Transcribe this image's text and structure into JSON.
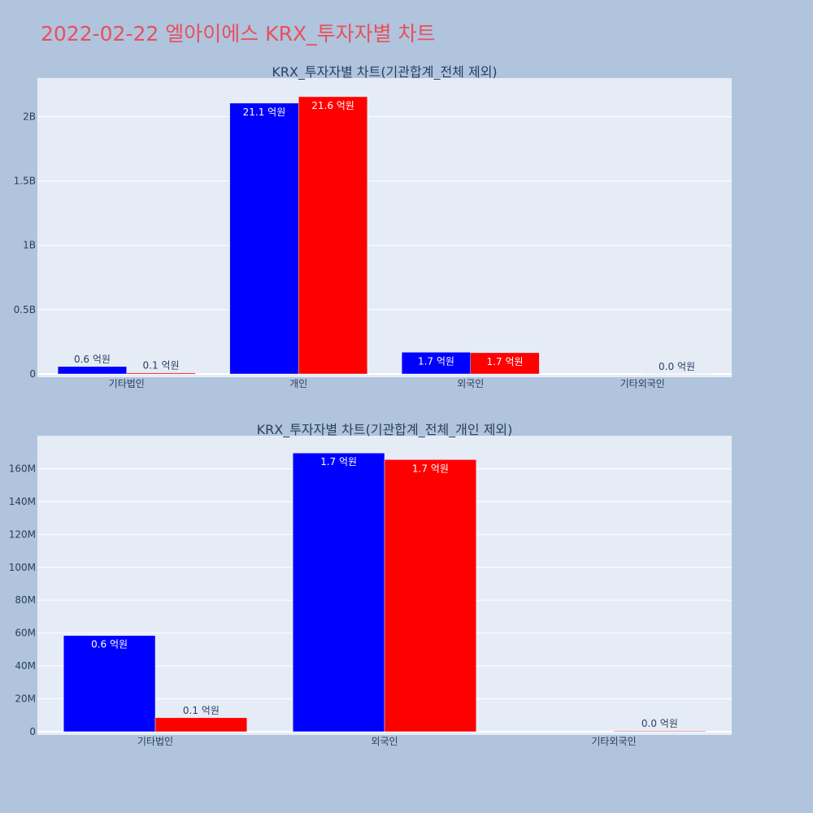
{
  "page": {
    "title": "2022-02-22 엘아이에스 KRX_투자자별 차트"
  },
  "colors": {
    "buy": "#0000ff",
    "sell": "#ff0000",
    "plot_bg": "#e5ecf6",
    "page_bg": "#b0c4de",
    "title": "#e8505b"
  },
  "chart_data": [
    {
      "type": "bar",
      "title": "KRX_투자자별 차트(기관합계_전체 제외)",
      "categories": [
        "기타법인",
        "개인",
        "외국인",
        "기타외국인"
      ],
      "series": [
        {
          "values": [
            58000000,
            2105000000,
            169000000,
            0
          ],
          "labels": [
            "0.6 억원",
            "21.1 억원",
            "1.7 억원",
            ""
          ]
        },
        {
          "values": [
            8500000,
            2155000000,
            165000000,
            400000
          ],
          "labels": [
            "0.1 억원",
            "21.6 억원",
            "1.7 억원",
            "0.0 억원"
          ]
        }
      ],
      "ylim": [
        0,
        2300000000
      ],
      "yticks": [
        0,
        500000000,
        1000000000,
        1500000000,
        2000000000
      ],
      "ytick_labels": [
        "0",
        "0.5B",
        "1B",
        "1.5B",
        "2B"
      ],
      "grid": true
    },
    {
      "type": "bar",
      "title": "KRX_투자자별 차트(기관합계_전체_개인 제외)",
      "categories": [
        "기타법인",
        "외국인",
        "기타외국인"
      ],
      "series": [
        {
          "values": [
            58500000,
            169500000,
            0
          ],
          "labels": [
            "0.6 억원",
            "1.7 억원",
            ""
          ]
        },
        {
          "values": [
            8500000,
            165500000,
            400000
          ],
          "labels": [
            "0.1 억원",
            "1.7 억원",
            "0.0 억원"
          ]
        }
      ],
      "ylim": [
        0,
        180000000
      ],
      "yticks": [
        0,
        20000000,
        40000000,
        60000000,
        80000000,
        100000000,
        120000000,
        140000000,
        160000000
      ],
      "ytick_labels": [
        "0",
        "20M",
        "40M",
        "60M",
        "80M",
        "100M",
        "120M",
        "140M",
        "160M"
      ],
      "grid": true
    }
  ]
}
